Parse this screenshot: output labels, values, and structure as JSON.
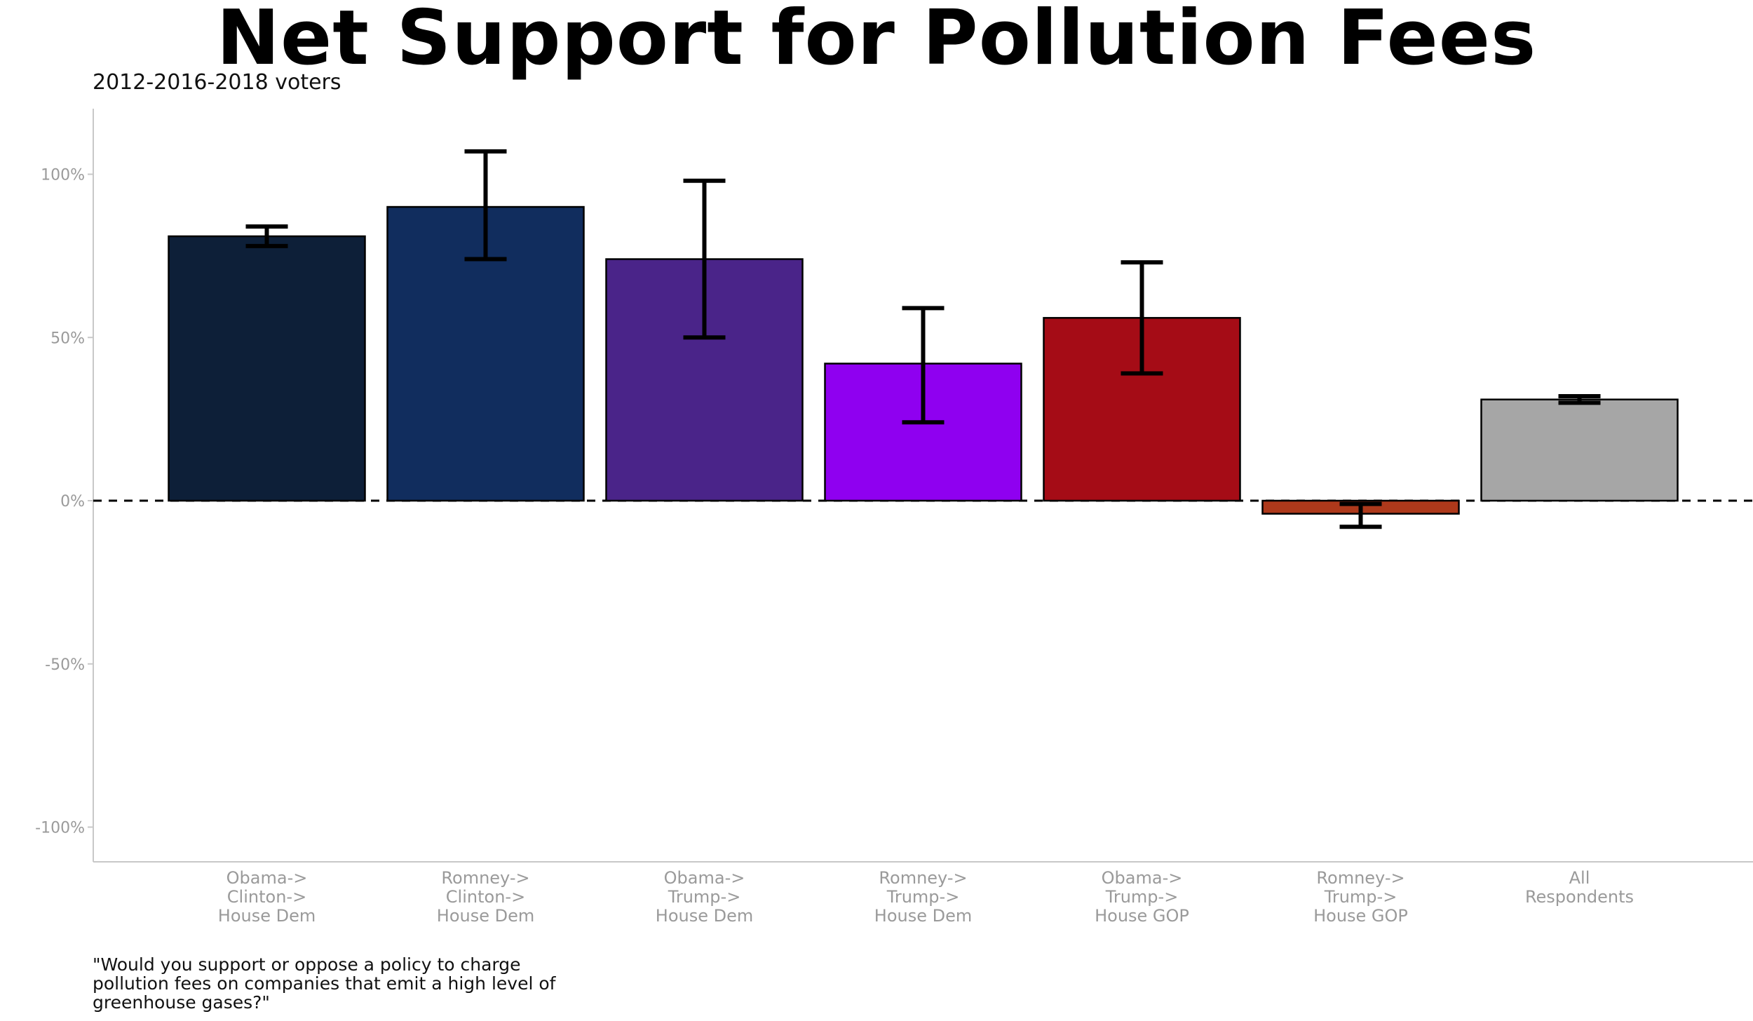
{
  "chart_data": {
    "type": "bar",
    "title": "Net Support for Pollution Fees",
    "subtitle": "2012-2016-2018 voters",
    "caption": "\"Would you support or oppose a policy to charge pollution fees on companies that emit a high level of greenhouse gases?\"",
    "xlabel": "",
    "ylabel": "",
    "ylim": [
      -110,
      120
    ],
    "yticks": [
      -100,
      -50,
      0,
      50,
      100
    ],
    "ytick_labels": [
      "-100%",
      "-50%",
      "0%",
      "50%",
      "100%"
    ],
    "reference_line": 0,
    "grid": false,
    "categories": [
      [
        "Obama->",
        "Clinton->",
        "House Dem"
      ],
      [
        "Romney->",
        "Clinton->",
        "House Dem"
      ],
      [
        "Obama->",
        "Trump->",
        "House Dem"
      ],
      [
        "Romney->",
        "Trump->",
        "House Dem"
      ],
      [
        "Obama->",
        "Trump->",
        "House GOP"
      ],
      [
        "Romney->",
        "Trump->",
        "House GOP"
      ],
      [
        "All",
        "Respondents"
      ]
    ],
    "values": [
      81,
      90,
      74,
      42,
      56,
      -4,
      31
    ],
    "error_low": [
      78,
      74,
      50,
      24,
      39,
      -8,
      30
    ],
    "error_high": [
      84,
      107,
      98,
      59,
      73,
      -1,
      32
    ],
    "colors": [
      "#0d1f38",
      "#112d5e",
      "#4a2489",
      "#8f00f0",
      "#a50c16",
      "#ae391b",
      "#a6a6a6"
    ]
  }
}
